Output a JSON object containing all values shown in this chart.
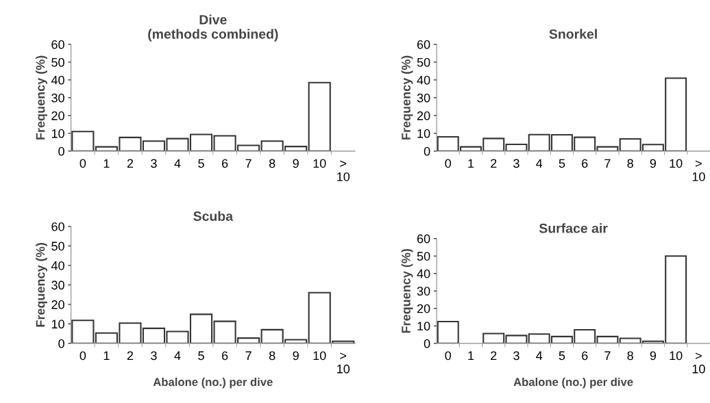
{
  "chart_data": [
    {
      "type": "bar",
      "title": "Dive\n(methods combined)",
      "ylabel": "Frequency (%)",
      "categories": [
        "0",
        "1",
        "2",
        "3",
        "4",
        "5",
        "6",
        "7",
        "8",
        "9",
        "10",
        ">\n10"
      ],
      "values": [
        11,
        2.4,
        7.7,
        5.6,
        7,
        9.4,
        8.6,
        3.2,
        5.6,
        2.6,
        38.5,
        0
      ],
      "color": "#ffffff",
      "ylim": [
        0,
        60
      ],
      "yticks": [
        0,
        10,
        20,
        30,
        40,
        50,
        60
      ],
      "grid": false,
      "legend": false
    },
    {
      "type": "bar",
      "title": "Snorkel",
      "ylabel": "Frequency (%)",
      "categories": [
        "0",
        "1",
        "2",
        "3",
        "4",
        "5",
        "6",
        "7",
        "8",
        "9",
        "10",
        ">\n10"
      ],
      "values": [
        8,
        2.4,
        7.1,
        3.8,
        9.3,
        9.2,
        7.8,
        2.4,
        6.9,
        3.7,
        41,
        0
      ],
      "color": "#ffffff",
      "ylim": [
        0,
        60
      ],
      "yticks": [
        0,
        10,
        20,
        30,
        40,
        50,
        60
      ],
      "grid": false,
      "legend": false
    },
    {
      "type": "bar",
      "title": "Scuba",
      "ylabel": "Frequency (%)",
      "xlabel": "Abalone (no.) per dive",
      "categories": [
        "0",
        "1",
        "2",
        "3",
        "4",
        "5",
        "6",
        "7",
        "8",
        "9",
        "10",
        ">\n10"
      ],
      "values": [
        11.8,
        5.3,
        10.4,
        7.7,
        6.1,
        14.9,
        11.3,
        2.7,
        7,
        1.9,
        26,
        1.1
      ],
      "color": "#ffffff",
      "ylim": [
        0,
        60
      ],
      "yticks": [
        0,
        10,
        20,
        30,
        40,
        50,
        60
      ],
      "grid": false,
      "legend": false
    },
    {
      "type": "bar",
      "title": "Surface air",
      "ylabel": "Frequency (%)",
      "xlabel": "Abalone (no.) per dive",
      "categories": [
        "0",
        "1",
        "2",
        "3",
        "4",
        "5",
        "6",
        "7",
        "8",
        "9",
        "10",
        ">\n10"
      ],
      "values": [
        12.5,
        0,
        5.6,
        4.5,
        5.3,
        3.9,
        7.8,
        3.9,
        2.9,
        1.2,
        50,
        0
      ],
      "color": "#ffffff",
      "ylim": [
        0,
        60
      ],
      "yticks": [
        0,
        10,
        20,
        30,
        40,
        50,
        60
      ],
      "grid": false,
      "legend": false
    }
  ]
}
